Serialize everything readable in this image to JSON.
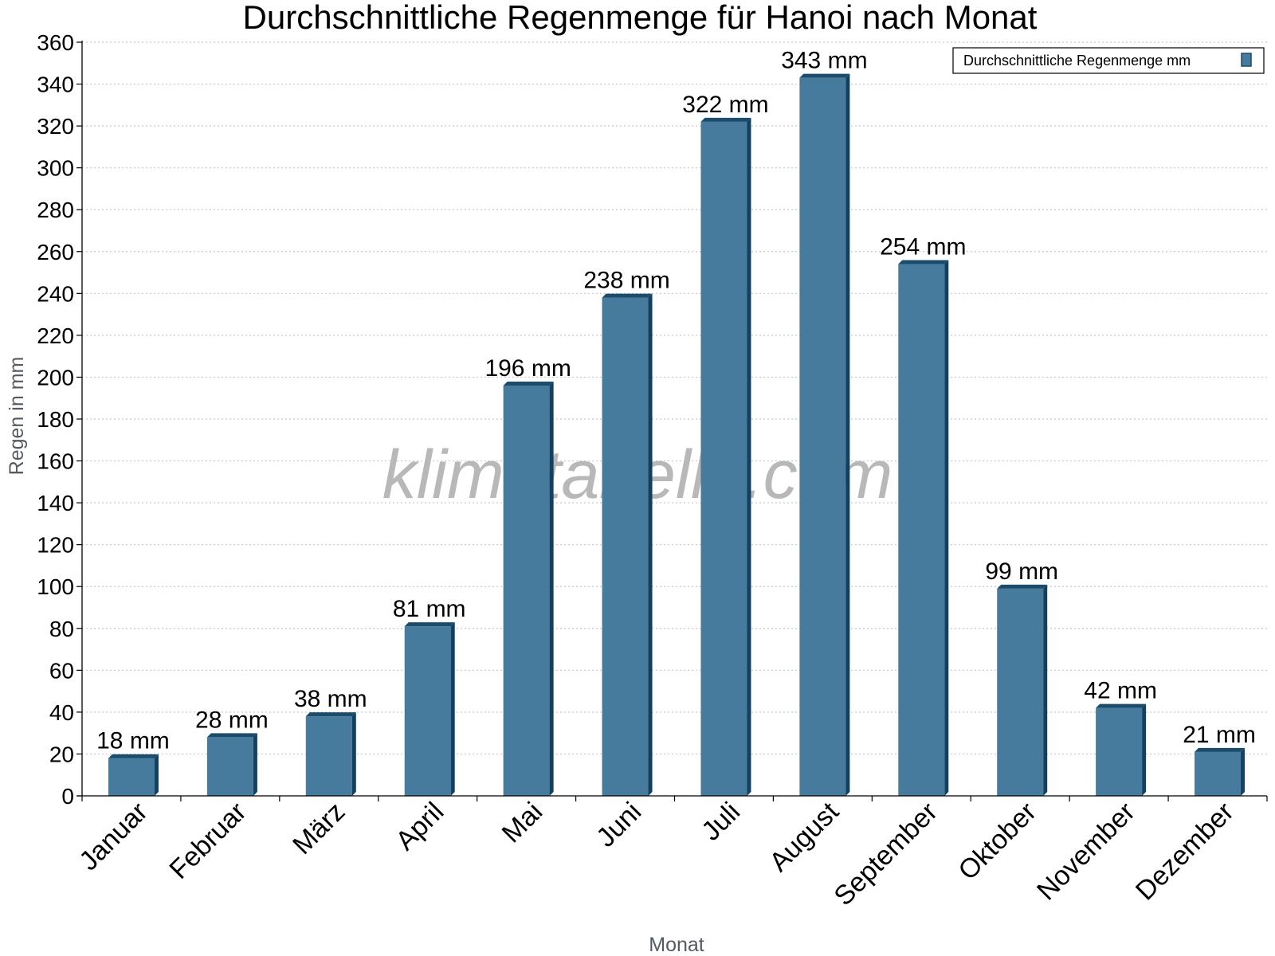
{
  "chart_data": {
    "type": "bar",
    "title": "Durchschnittliche Regenmenge für Hanoi nach Monat",
    "xlabel": "Monat",
    "ylabel": "Regen in mm",
    "categories": [
      "Januar",
      "Februar",
      "März",
      "April",
      "Mai",
      "Juni",
      "Juli",
      "August",
      "September",
      "Oktober",
      "November",
      "Dezember"
    ],
    "series": [
      {
        "name": "Durchschnittliche Regenmenge mm",
        "values": [
          18,
          28,
          38,
          81,
          196,
          238,
          322,
          343,
          254,
          99,
          42,
          21
        ],
        "labels": [
          "18 mm",
          "28 mm",
          "38 mm",
          "81 mm",
          "196 mm",
          "238 mm",
          "322 mm",
          "343 mm",
          "254 mm",
          "99 mm",
          "42 mm",
          "21 mm"
        ],
        "color": "#467b9d"
      }
    ],
    "ylim": [
      0,
      360
    ],
    "yticks": [
      "0",
      "20",
      "40",
      "60",
      "80",
      "100",
      "120",
      "140",
      "160",
      "180",
      "200",
      "220",
      "240",
      "260",
      "280",
      "300",
      "320",
      "340",
      "360"
    ],
    "grid": true,
    "legend_position": "top-right",
    "watermark": "klimatabelle.com"
  }
}
